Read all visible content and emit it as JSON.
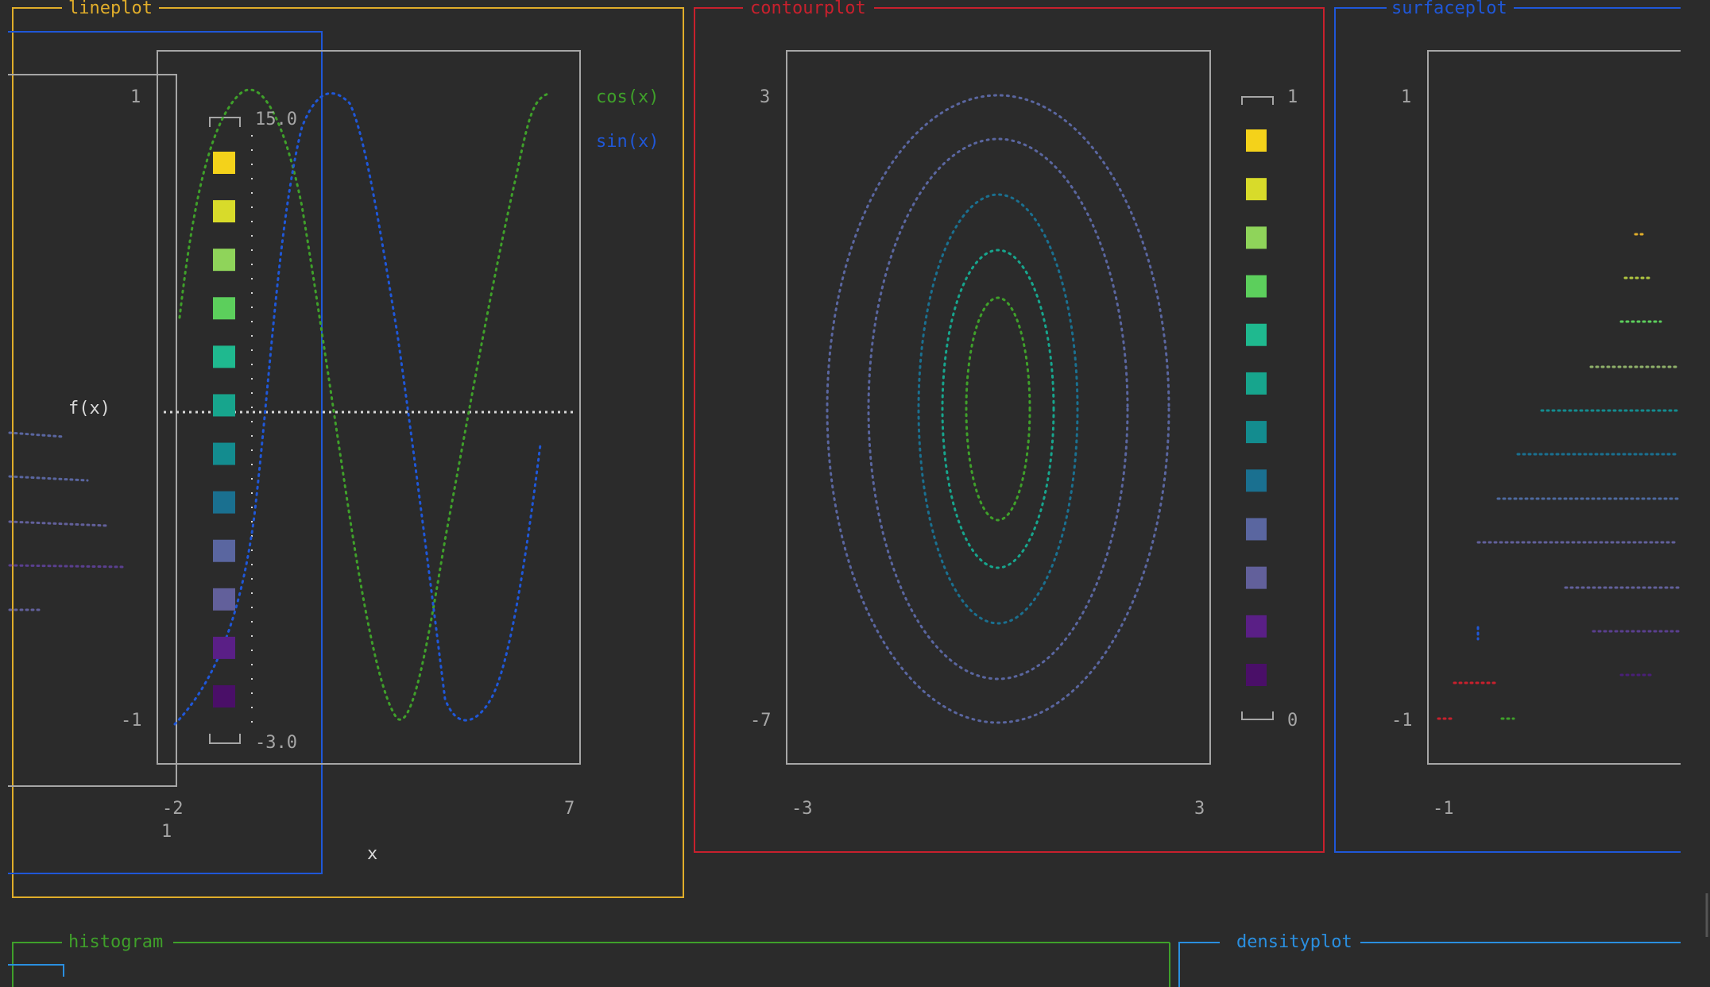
{
  "panels": {
    "lineplot": {
      "title": "lineplot",
      "color": "#e0ad2a"
    },
    "contourplot": {
      "title": "contourplot",
      "color": "#c8202d"
    },
    "surfaceplot": {
      "title": "surfaceplot",
      "color": "#1f57d8"
    },
    "histogram": {
      "title": "histogram",
      "color": "#3fa02a"
    },
    "densityplot": {
      "title": "densityplot",
      "color": "#2a8fe0"
    }
  },
  "lineplot": {
    "y_max": "1",
    "y_min": "-1",
    "x_min": "-2",
    "x_max": "7",
    "xlabel": "x",
    "ylabel": "f(x)",
    "legend": [
      {
        "label": "cos(x)",
        "color": "#3fa02a"
      },
      {
        "label": "sin(x)",
        "color": "#1f57d8"
      }
    ],
    "colorbar_max": "15.0",
    "colorbar_min": "-3.0",
    "stray_label": "1"
  },
  "contourplot": {
    "y_max": "3",
    "y_min": "-7",
    "x_min": "-3",
    "x_max": "3",
    "colorbar_max": "1",
    "colorbar_min": "0"
  },
  "surfaceplot": {
    "y_max": "1",
    "y_min": "-1",
    "x_min": "-1"
  },
  "colors": {
    "background": "#2b2b2b",
    "frame": "#a6a6a6",
    "cos_series": "#3fa02a",
    "sin_series": "#1f57d8",
    "colormap": [
      "#f4d21a",
      "#d8db2a",
      "#8fd45a",
      "#5ccf5c",
      "#1fb98f",
      "#17a58d",
      "#138c8f",
      "#1a7090",
      "#5a66a0",
      "#62609b",
      "#5a1f86",
      "#4a0f68"
    ]
  }
}
